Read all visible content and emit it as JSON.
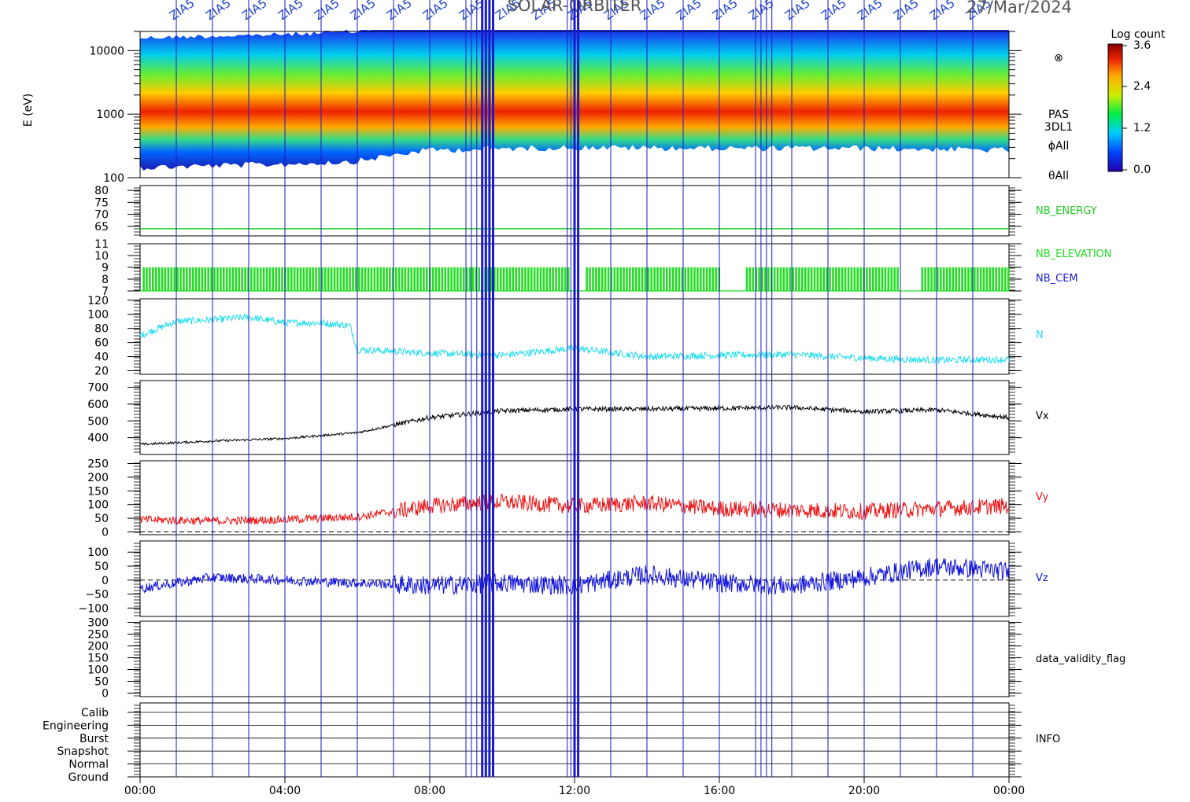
{
  "chart_data": {
    "type": "line",
    "title": "SOLAR-ORBITER",
    "date": "27/Mar/2024",
    "x_ticks": [
      "00:00",
      "04:00",
      "08:00",
      "12:00",
      "16:00",
      "20:00",
      "00:00"
    ],
    "event_label": "ZIA5",
    "spectrogram": {
      "ylabel": "E (eV)",
      "y_ticks": [
        "10000",
        "1000",
        "100"
      ],
      "ylim": [
        100,
        20000
      ],
      "log_scale": true,
      "peak_energy_x": [
        0,
        4,
        6,
        8,
        12,
        16,
        20,
        24
      ],
      "peak_energy_y": [
        800,
        900,
        1000,
        1500,
        1650,
        1600,
        1600,
        1500
      ],
      "labels": [
        "⊗",
        "PAS",
        "3DL1",
        "ϕAll",
        "θAll"
      ],
      "colorbar": {
        "title": "Log count",
        "ticks": [
          "3.6",
          "2.4",
          "1.2",
          "0.0"
        ]
      }
    },
    "panels": [
      {
        "name": "NB_ENERGY",
        "color": "#22cc22",
        "y_ticks": [
          "80",
          "75",
          "70",
          "65"
        ],
        "ylim": [
          61,
          82
        ],
        "value": 64
      },
      {
        "name": "NB_ELEVATION",
        "color": "#22dd22",
        "y_ticks": [
          "11",
          "10",
          "9",
          "8",
          "7"
        ],
        "ylim": [
          7,
          11
        ],
        "band": [
          7,
          9
        ],
        "gaps": [
          [
            16.0,
            16.7
          ],
          [
            21.0,
            21.6
          ],
          [
            11.9,
            12.3
          ]
        ]
      },
      {
        "name": "NB_CEM",
        "color": "#1a1acc"
      },
      {
        "name": "N",
        "color": "#22ddee",
        "y_ticks": [
          "120",
          "100",
          "80",
          "60",
          "40",
          "20"
        ],
        "ylim": [
          15,
          122
        ],
        "x": [
          0,
          1,
          2,
          3,
          4,
          5,
          5.8,
          6,
          8,
          10,
          12,
          14,
          16,
          18,
          20,
          22,
          24
        ],
        "y": [
          70,
          90,
          92,
          96,
          88,
          88,
          84,
          50,
          45,
          42,
          52,
          40,
          42,
          43,
          38,
          35,
          36
        ]
      },
      {
        "name": "Vx",
        "color": "#000000",
        "y_ticks": [
          "700",
          "600",
          "500",
          "400"
        ],
        "ylim": [
          300,
          740
        ],
        "x": [
          0,
          2,
          4,
          6,
          8,
          10,
          12,
          14,
          16,
          18,
          20,
          22,
          24
        ],
        "y": [
          360,
          380,
          395,
          430,
          520,
          560,
          570,
          570,
          575,
          580,
          555,
          565,
          520
        ]
      },
      {
        "name": "Vy",
        "color": "#ee1111",
        "y_ticks": [
          "250",
          "200",
          "150",
          "100",
          "50",
          "0"
        ],
        "ylim": [
          -10,
          260
        ],
        "x": [
          0,
          2,
          4,
          6,
          8,
          10,
          12,
          14,
          16,
          18,
          20,
          22,
          24
        ],
        "y": [
          45,
          40,
          45,
          55,
          95,
          110,
          95,
          105,
          85,
          80,
          75,
          85,
          95
        ]
      },
      {
        "name": "Vz",
        "color": "#1111dd",
        "y_ticks": [
          "100",
          "50",
          "0",
          "−50",
          "−100"
        ],
        "ylim": [
          -130,
          140
        ],
        "x": [
          0,
          2,
          4,
          6,
          8,
          10,
          12,
          14,
          16,
          18,
          20,
          22,
          24
        ],
        "y": [
          -30,
          10,
          0,
          -10,
          -20,
          -10,
          -20,
          20,
          -10,
          -20,
          10,
          50,
          30
        ]
      },
      {
        "name": "data_validity_flag",
        "color": "#000000",
        "y_ticks": [
          "300",
          "250",
          "200",
          "150",
          "100",
          "50",
          "0"
        ],
        "ylim": [
          -15,
          305
        ]
      },
      {
        "name": "INFO",
        "color": "#000000",
        "y_ticks": [
          "Calib",
          "Engineering",
          "Burst",
          "Snapshot",
          "Normal",
          "Ground"
        ]
      }
    ],
    "event_hours": [
      1,
      2,
      3,
      4,
      5,
      6,
      7,
      8,
      9,
      9.15,
      9.3,
      9.45,
      9.55,
      9.65,
      9.75,
      11.8,
      11.9,
      12.0,
      12.1,
      13,
      14,
      15,
      16,
      17,
      17.15,
      17.3,
      17.45,
      18,
      19,
      20,
      21,
      22,
      23
    ],
    "event_ticks_major": [
      1,
      2,
      3,
      4,
      5,
      6,
      7,
      8,
      9,
      10,
      11,
      12,
      13,
      14,
      15,
      16,
      17,
      18,
      19,
      20,
      21,
      22,
      23
    ]
  }
}
